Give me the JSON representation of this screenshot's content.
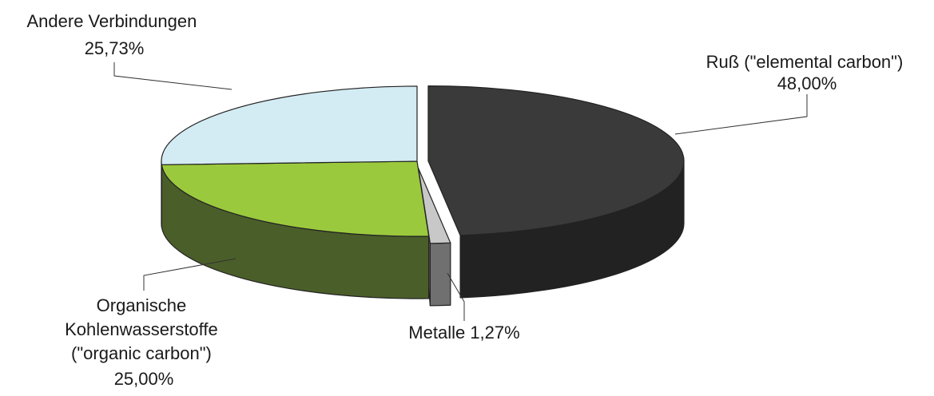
{
  "chart_data": {
    "type": "pie",
    "title": "",
    "three_d": true,
    "exploded": true,
    "slices": [
      {
        "name": "Ruß (\"elemental carbon\")",
        "value": 48.0,
        "label_lines": [
          "Ruß (\"elemental carbon\")",
          "48,00%"
        ],
        "top_color": "#3a3a3a",
        "side_color": "#222222"
      },
      {
        "name": "Metalle",
        "value": 1.27,
        "label_lines": [
          "Metalle 1,27%"
        ],
        "top_color": "#c8c8c8",
        "side_color": "#707070"
      },
      {
        "name": "Organische Kohlenwasserstoffe (\"organic carbon\")",
        "value": 25.0,
        "label_lines": [
          "Organische",
          "Kohlenwasserstoffe",
          "(\"organic carbon\")",
          "25,00%"
        ],
        "top_color": "#9bc93d",
        "side_color": "#4a5e2a"
      },
      {
        "name": "Andere Verbindungen",
        "value": 25.73,
        "label_lines": [
          "Andere Verbindungen",
          "25,73%"
        ],
        "top_color": "#d3ebf3",
        "side_color": "#9fb8c2"
      }
    ]
  }
}
